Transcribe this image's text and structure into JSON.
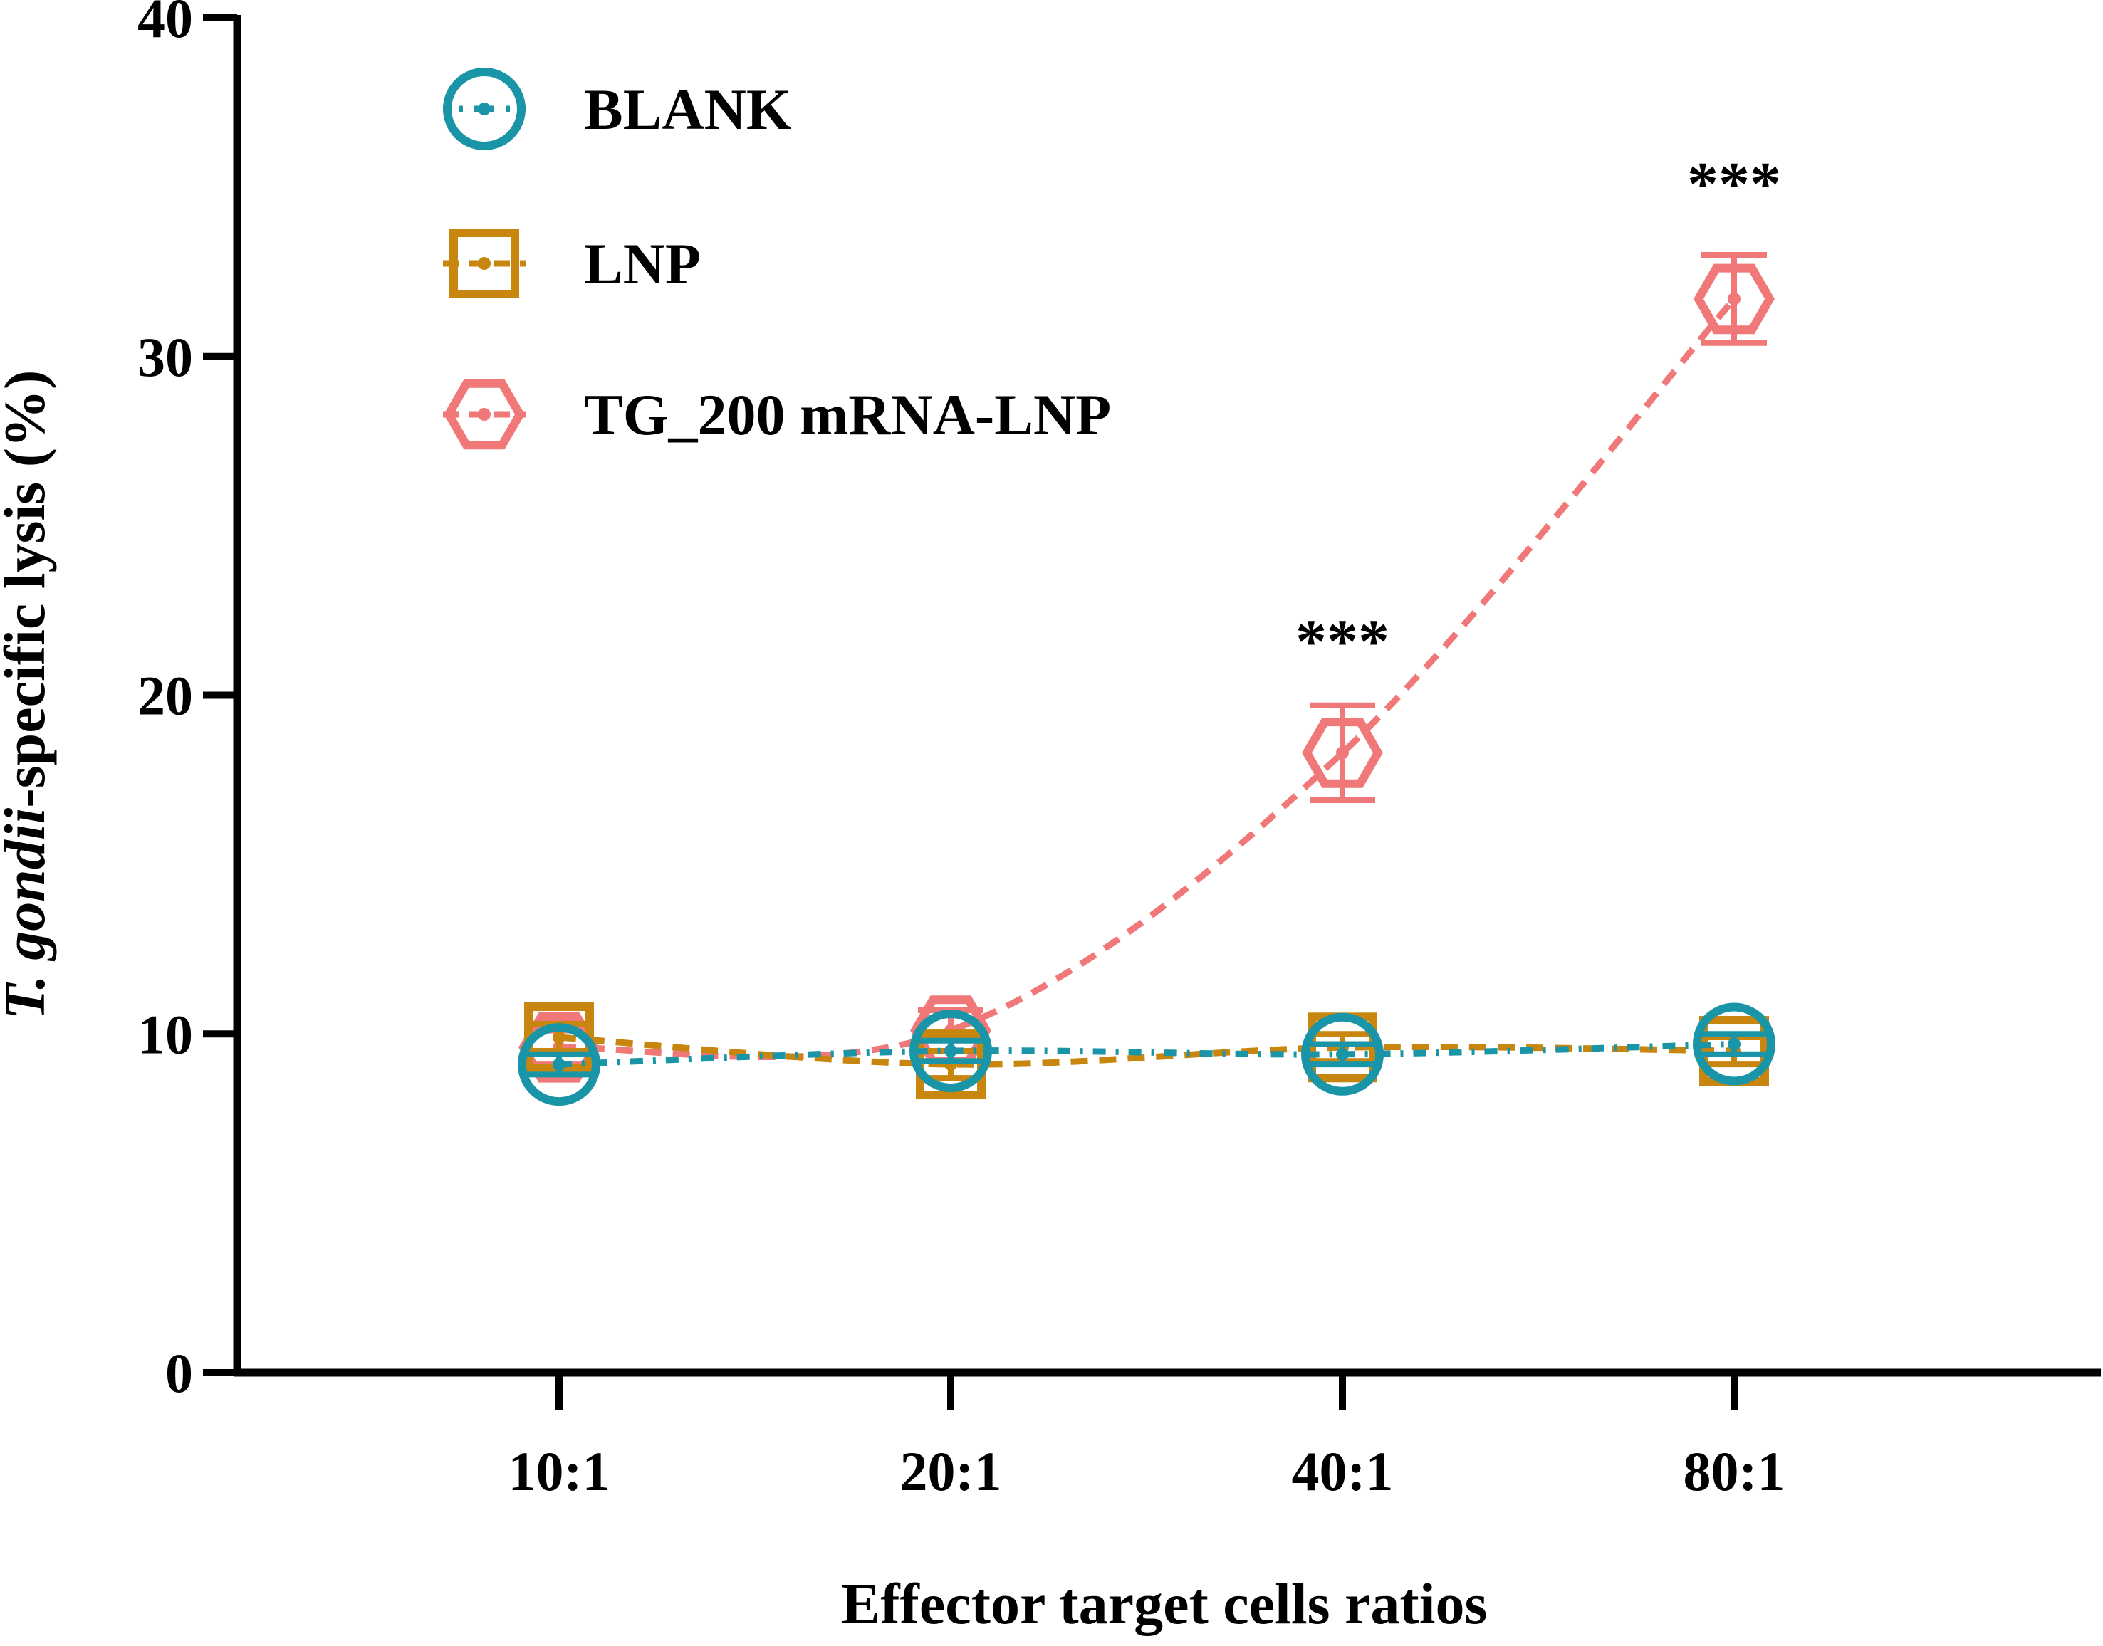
{
  "chart_data": {
    "type": "line",
    "title": "",
    "xlabel": "Effector target cells ratios",
    "ylabel": {
      "italic": "T. gondii",
      "rest": "-specific lysis (%)"
    },
    "categories": [
      "10:1",
      "20:1",
      "40:1",
      "80:1"
    ],
    "ylim": [
      0,
      40
    ],
    "yticks": [
      "0",
      "10",
      "20",
      "30",
      "40"
    ],
    "grid": false,
    "legend_position": "top-left",
    "series": [
      {
        "name": "BLANK",
        "marker": "circle",
        "line_style": "dash-dot",
        "color": "#1a95a8",
        "values": [
          9.1,
          9.5,
          9.4,
          9.7
        ],
        "errors": [
          0.3,
          0.3,
          0.3,
          0.3
        ]
      },
      {
        "name": "LNP",
        "marker": "square",
        "line_style": "dashed",
        "color": "#c8860f",
        "values": [
          9.9,
          9.1,
          9.6,
          9.5
        ],
        "errors": [
          0.4,
          0.4,
          0.4,
          0.4
        ]
      },
      {
        "name": "TG_200 mRNA-LNP",
        "marker": "hexagon",
        "line_style": "dashed",
        "color": "#f07878",
        "values": [
          9.6,
          10.1,
          18.3,
          31.7
        ],
        "errors": [
          0.5,
          0.6,
          1.4,
          1.3
        ]
      }
    ],
    "annotations": [
      {
        "category": "40:1",
        "text": "***",
        "y": 21.6
      },
      {
        "category": "80:1",
        "text": "***",
        "y": 35.1
      }
    ]
  }
}
